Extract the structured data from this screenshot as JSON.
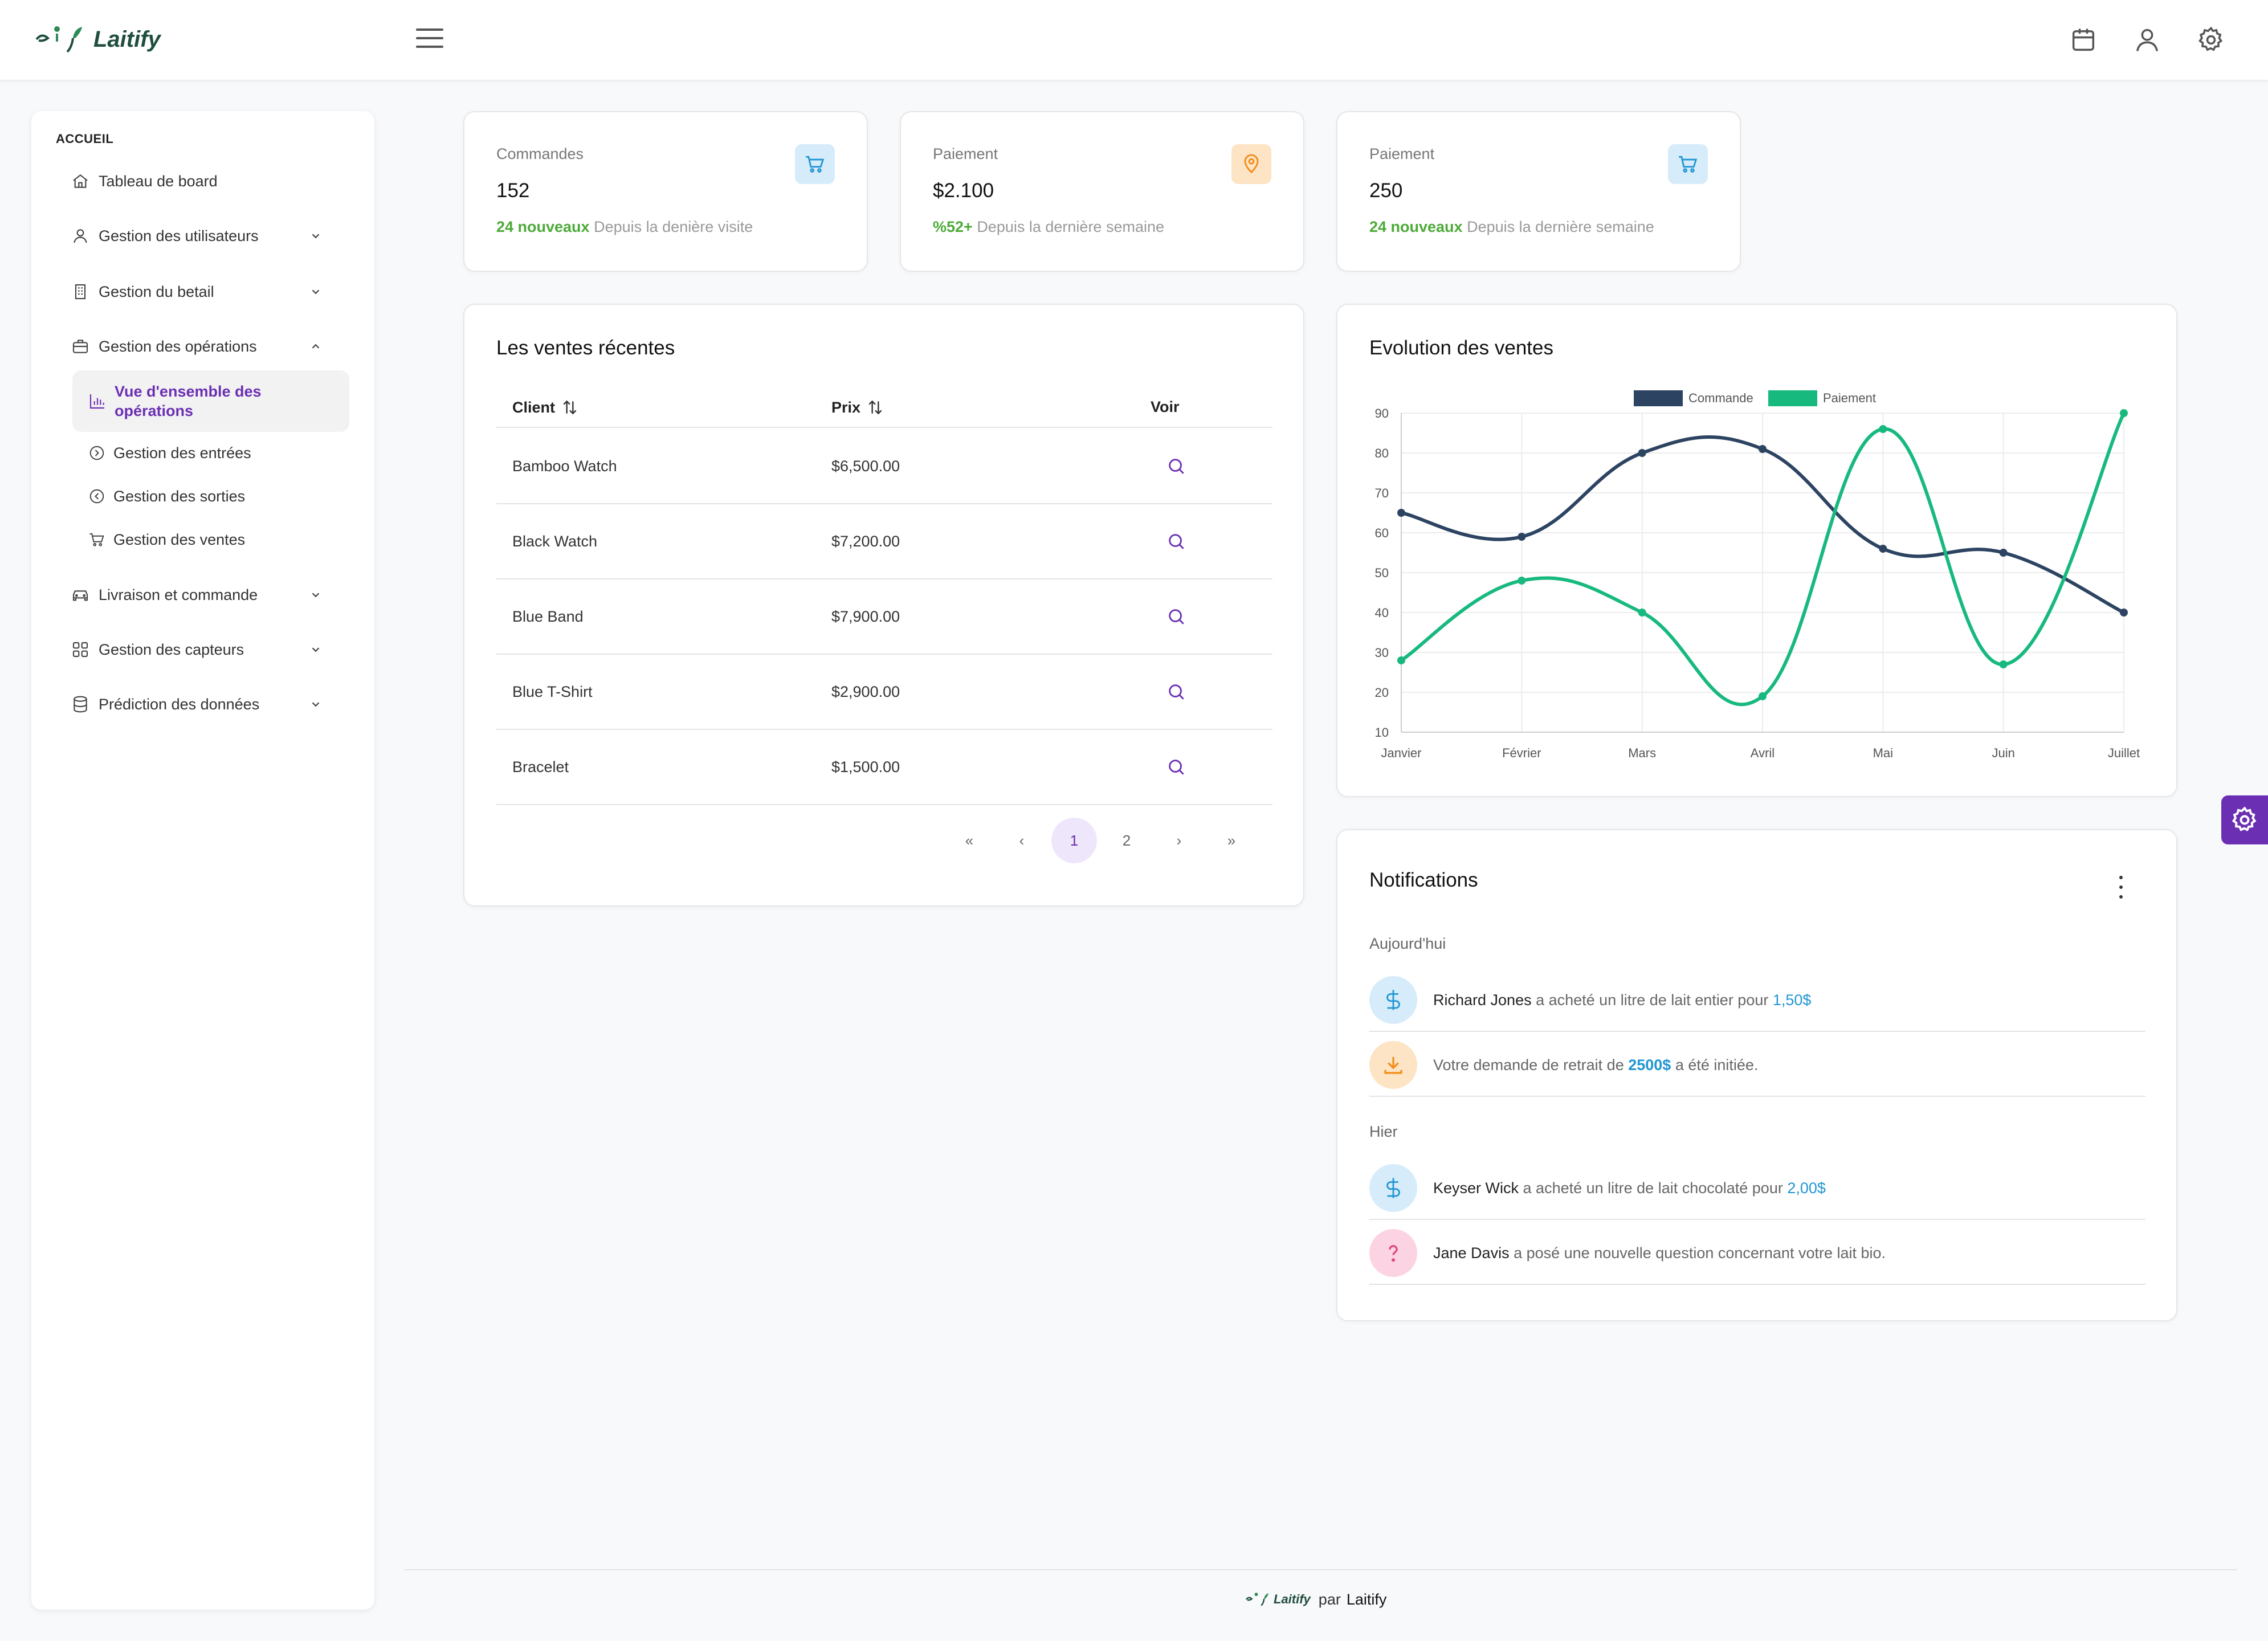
{
  "app": {
    "name": "Laitify"
  },
  "sidebar": {
    "section": "ACCUEIL",
    "items": [
      {
        "label": "Tableau de board"
      },
      {
        "label": "Gestion des utilisateurs"
      },
      {
        "label": "Gestion du betail"
      },
      {
        "label": "Gestion des opérations"
      },
      {
        "label": "Livraison et commande"
      },
      {
        "label": "Gestion des capteurs"
      },
      {
        "label": "Prédiction des données"
      }
    ],
    "sub_items": [
      {
        "label": "Vue d'ensemble des opérations"
      },
      {
        "label": "Gestion des entrées"
      },
      {
        "label": "Gestion des sorties"
      },
      {
        "label": "Gestion des ventes"
      }
    ]
  },
  "stats": [
    {
      "label": "Commandes",
      "value": "152",
      "highlight": "24 nouveaux",
      "foot": "Depuis la denière visite",
      "icon": "cart-icon",
      "icon_bg": "#d7ecfa",
      "icon_color": "#2196d3"
    },
    {
      "label": "Paiement",
      "value": "$2.100",
      "highlight": "%52+",
      "foot": "Depuis la dernière semaine",
      "icon": "map-pin-icon",
      "icon_bg": "#fde4c4",
      "icon_color": "#f28c1a"
    },
    {
      "label": "Paiement",
      "value": "250",
      "highlight": "24 nouveaux",
      "foot": "Depuis la dernière semaine",
      "icon": "cart-icon",
      "icon_bg": "#d7ecfa",
      "icon_color": "#2196d3"
    }
  ],
  "sales": {
    "title": "Les ventes récentes",
    "columns": {
      "client": "Client",
      "price": "Prix",
      "view": "Voir"
    },
    "rows": [
      {
        "client": "Bamboo Watch",
        "price": "$6,500.00"
      },
      {
        "client": "Black Watch",
        "price": "$7,200.00"
      },
      {
        "client": "Blue Band",
        "price": "$7,900.00"
      },
      {
        "client": "Blue T-Shirt",
        "price": "$2,900.00"
      },
      {
        "client": "Bracelet",
        "price": "$1,500.00"
      }
    ],
    "pagination": {
      "first": "«",
      "prev": "‹",
      "pages": [
        "1",
        "2"
      ],
      "next": "›",
      "last": "»",
      "current": "1"
    }
  },
  "chart_data": {
    "type": "line",
    "title": "Evolution des ventes",
    "categories": [
      "Janvier",
      "Février",
      "Mars",
      "Avril",
      "Mai",
      "Juin",
      "Juillet"
    ],
    "series": [
      {
        "name": "Commande",
        "color": "#2c4462",
        "values": [
          65,
          59,
          80,
          81,
          56,
          55,
          40
        ]
      },
      {
        "name": "Paiement",
        "color": "#17b97e",
        "values": [
          28,
          48,
          40,
          19,
          86,
          27,
          90
        ]
      }
    ],
    "ylim": [
      10,
      90
    ],
    "yticks": [
      "10",
      "20",
      "30",
      "40",
      "50",
      "60",
      "70",
      "80",
      "90"
    ],
    "grid": true,
    "legend": "top-center",
    "smooth": true
  },
  "notifications": {
    "title": "Notifications",
    "groups": [
      {
        "label": "Aujourd'hui"
      },
      {
        "label": "Hier"
      }
    ],
    "items": [
      {
        "name": "Richard Jones",
        "text": " a acheté un litre de lait entier pour ",
        "amount": "1,50$",
        "icon": "dollar-icon",
        "bg": "#d7ecfa",
        "color": "#2196d3"
      },
      {
        "pre": "Votre demande de retrait de ",
        "amount": "2500$",
        "post": " a été initiée.",
        "icon": "download-icon",
        "bg": "#fde4c4",
        "color": "#f28c1a"
      },
      {
        "name": "Keyser Wick",
        "text": " a acheté un litre de lait chocolaté pour ",
        "amount": "2,00$",
        "icon": "dollar-icon",
        "bg": "#d7ecfa",
        "color": "#2196d3"
      },
      {
        "name": "Jane Davis",
        "text": " a posé une nouvelle question concernant votre lait bio.",
        "icon": "question-icon",
        "bg": "#fcd3e2",
        "color": "#e0457b"
      }
    ]
  },
  "footer": {
    "by": "par",
    "author": "Laitify",
    "brand": "Laitify"
  }
}
